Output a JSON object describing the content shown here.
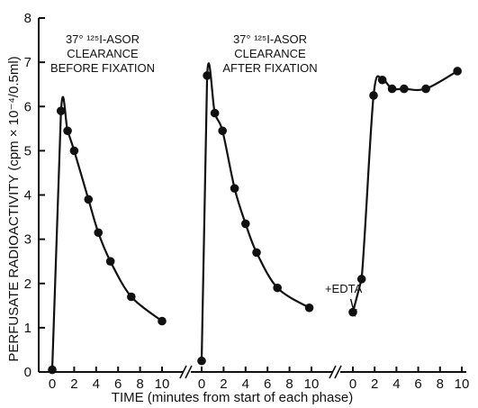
{
  "chart_data": {
    "type": "line",
    "xlabel": "TIME (minutes from start of each phase)",
    "ylabel": "PERFUSATE RADIOACTIVITY (cpm × 10⁻⁴/0.5ml)",
    "ylim": [
      0,
      8
    ],
    "y_ticks": [
      "0",
      "1",
      "2",
      "3",
      "4",
      "5",
      "6",
      "7",
      "8"
    ],
    "x_ticks": [
      "0",
      "2",
      "4",
      "6",
      "8",
      "10"
    ],
    "xlim_per_panel": [
      0,
      10
    ],
    "axis_break": "//",
    "grid": false,
    "panels": [
      {
        "annotation": [
          "37° ¹²⁵I-ASOR",
          "CLEARANCE",
          "BEFORE FIXATION"
        ],
        "x": [
          0,
          0.8,
          1.4,
          2.0,
          3.3,
          4.2,
          5.3,
          7.2,
          10.0
        ],
        "y": [
          0.05,
          5.9,
          5.45,
          5.0,
          3.9,
          3.15,
          2.5,
          1.7,
          1.15
        ]
      },
      {
        "annotation": [
          "37° ¹²⁵I-ASOR",
          "CLEARANCE",
          "AFTER FIXATION"
        ],
        "x": [
          0,
          0.5,
          1.2,
          1.9,
          3.0,
          4.0,
          5.0,
          6.9,
          9.8
        ],
        "y": [
          0.25,
          6.7,
          5.85,
          5.45,
          4.15,
          3.35,
          2.7,
          1.9,
          1.45
        ]
      },
      {
        "annotation": [
          "+EDTA"
        ],
        "annotation_arrow_x": 0.3,
        "x": [
          0,
          0.8,
          1.9,
          2.7,
          3.6,
          4.7,
          6.7,
          9.6
        ],
        "y": [
          1.35,
          2.1,
          6.25,
          6.6,
          6.4,
          6.4,
          6.4,
          6.8
        ]
      }
    ]
  }
}
